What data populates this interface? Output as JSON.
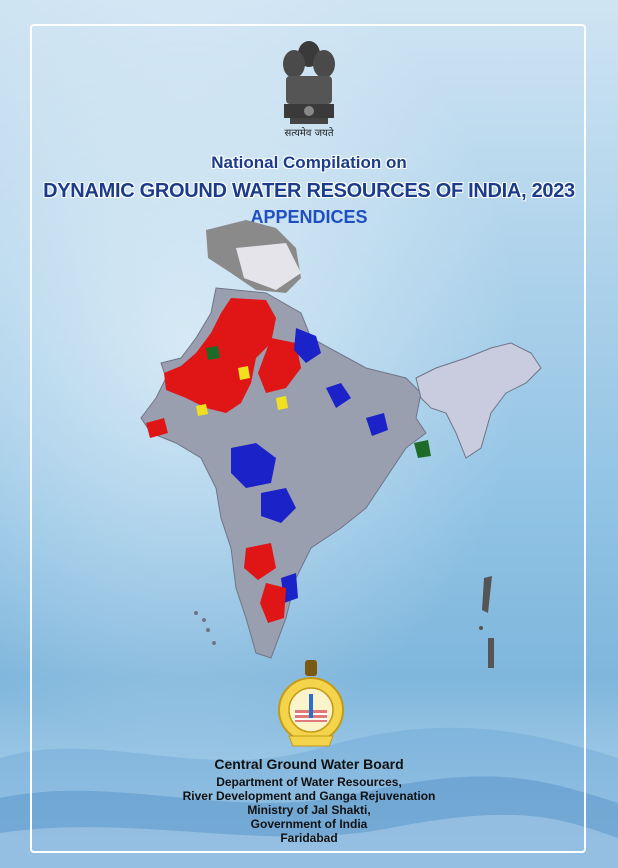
{
  "cover": {
    "emblem_icon": "national-emblem-icon",
    "motto": "सत्यमेव जयते",
    "title_line1": "National Compilation on",
    "title_line2": "DYNAMIC GROUND WATER RESOURCES OF INDIA, 2023",
    "title_line3": "APPENDICES",
    "map_icon": "india-district-map-icon",
    "logo_icon": "cgwb-logo-icon",
    "organization": {
      "name": "Central Ground Water Board",
      "department": "Department of Water Resources,",
      "division": "River Development and Ganga Rejuvenation",
      "ministry": "Ministry of Jal Shakti,",
      "government": "Government of India",
      "city": "Faridabad"
    },
    "colors": {
      "title": "#1b3c8a",
      "appendices": "#1f4fc0",
      "map_safe": "#9a9fb0",
      "map_over_exploited": "#e01515",
      "map_critical": "#f0e020",
      "map_semi_critical": "#1a22c8",
      "map_saline": "#1e6b28"
    }
  }
}
